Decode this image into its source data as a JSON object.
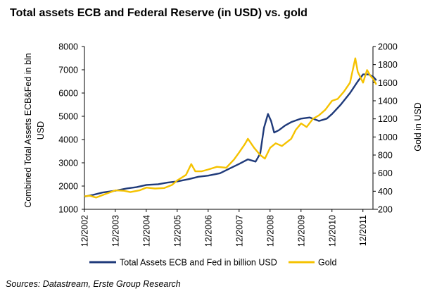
{
  "chart_data": {
    "type": "line",
    "title": "Total assets ECB and Federal Reserve (in USD) vs. gold",
    "ylabel_left": "Combined Total Assets ECB&Fed in bln USD",
    "ylabel_right": "Gold in USD",
    "ylim_left": [
      1000,
      8000
    ],
    "ylim_right": [
      200,
      2000
    ],
    "yticks_left": [
      "8000",
      "7000",
      "6000",
      "5000",
      "4000",
      "3000",
      "2000",
      "1000"
    ],
    "yticks_right": [
      "2000",
      "1800",
      "1600",
      "1400",
      "1200",
      "1000",
      "800",
      "600",
      "400",
      "200"
    ],
    "xticks": [
      "12/2002",
      "12/2003",
      "12/2004",
      "12/2005",
      "12/2006",
      "12/2007",
      "12/2008",
      "12/2009",
      "12/2010",
      "12/2011"
    ],
    "grid": false,
    "legend_position": "bottom",
    "series": [
      {
        "name": "Total Assets ECB and Fed in billion USD",
        "axis": "left",
        "color": "#1f3a7a",
        "points": [
          [
            2002.92,
            1550
          ],
          [
            2003.2,
            1620
          ],
          [
            2003.5,
            1720
          ],
          [
            2003.92,
            1800
          ],
          [
            2004.3,
            1900
          ],
          [
            2004.6,
            1950
          ],
          [
            2004.92,
            2050
          ],
          [
            2005.3,
            2080
          ],
          [
            2005.6,
            2150
          ],
          [
            2005.92,
            2200
          ],
          [
            2006.3,
            2300
          ],
          [
            2006.6,
            2400
          ],
          [
            2006.92,
            2450
          ],
          [
            2007.3,
            2550
          ],
          [
            2007.6,
            2750
          ],
          [
            2007.92,
            2950
          ],
          [
            2008.2,
            3150
          ],
          [
            2008.45,
            3050
          ],
          [
            2008.6,
            3400
          ],
          [
            2008.72,
            4500
          ],
          [
            2008.85,
            5100
          ],
          [
            2008.95,
            4800
          ],
          [
            2009.05,
            4300
          ],
          [
            2009.2,
            4400
          ],
          [
            2009.4,
            4600
          ],
          [
            2009.6,
            4750
          ],
          [
            2009.92,
            4900
          ],
          [
            2010.2,
            4950
          ],
          [
            2010.5,
            4800
          ],
          [
            2010.75,
            4900
          ],
          [
            2010.92,
            5100
          ],
          [
            2011.2,
            5500
          ],
          [
            2011.5,
            6000
          ],
          [
            2011.75,
            6500
          ],
          [
            2011.92,
            6800
          ],
          [
            2012.1,
            6800
          ],
          [
            2012.25,
            6700
          ],
          [
            2012.35,
            6550
          ]
        ]
      },
      {
        "name": "Gold",
        "axis": "right",
        "color": "#f5c200",
        "points": [
          [
            2002.92,
            345
          ],
          [
            2003.1,
            350
          ],
          [
            2003.3,
            330
          ],
          [
            2003.6,
            370
          ],
          [
            2003.92,
            410
          ],
          [
            2004.2,
            405
          ],
          [
            2004.4,
            390
          ],
          [
            2004.7,
            410
          ],
          [
            2004.92,
            440
          ],
          [
            2005.2,
            430
          ],
          [
            2005.5,
            435
          ],
          [
            2005.75,
            470
          ],
          [
            2005.92,
            520
          ],
          [
            2006.2,
            580
          ],
          [
            2006.37,
            700
          ],
          [
            2006.5,
            620
          ],
          [
            2006.7,
            620
          ],
          [
            2006.92,
            640
          ],
          [
            2007.2,
            670
          ],
          [
            2007.5,
            660
          ],
          [
            2007.75,
            750
          ],
          [
            2007.92,
            830
          ],
          [
            2008.1,
            920
          ],
          [
            2008.2,
            980
          ],
          [
            2008.4,
            880
          ],
          [
            2008.6,
            800
          ],
          [
            2008.75,
            760
          ],
          [
            2008.92,
            880
          ],
          [
            2009.1,
            930
          ],
          [
            2009.3,
            900
          ],
          [
            2009.6,
            980
          ],
          [
            2009.75,
            1080
          ],
          [
            2009.92,
            1150
          ],
          [
            2010.1,
            1110
          ],
          [
            2010.3,
            1200
          ],
          [
            2010.5,
            1240
          ],
          [
            2010.7,
            1300
          ],
          [
            2010.92,
            1400
          ],
          [
            2011.1,
            1420
          ],
          [
            2011.3,
            1500
          ],
          [
            2011.5,
            1600
          ],
          [
            2011.67,
            1870
          ],
          [
            2011.75,
            1720
          ],
          [
            2011.85,
            1650
          ],
          [
            2011.92,
            1600
          ],
          [
            2012.05,
            1740
          ],
          [
            2012.15,
            1680
          ],
          [
            2012.25,
            1640
          ],
          [
            2012.35,
            1580
          ]
        ]
      }
    ]
  },
  "source": "Sources: Datastream, Erste Group Research"
}
